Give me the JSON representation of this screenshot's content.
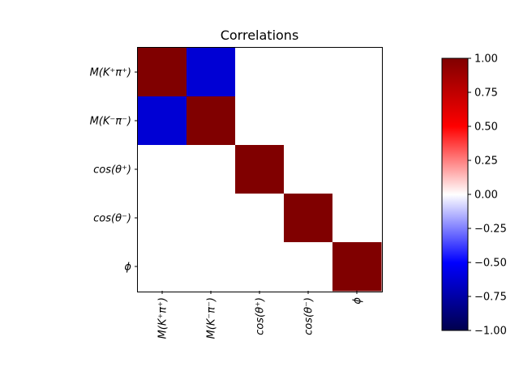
{
  "chart_data": {
    "type": "heatmap",
    "title": "Correlations",
    "labels": [
      "M(K⁺π⁺)",
      "M(K⁻π⁻)",
      "cos(θ⁺)",
      "cos(θ⁻)",
      "ϕ"
    ],
    "matrix": [
      [
        1.0,
        -0.62,
        0.0,
        0.0,
        0.0
      ],
      [
        -0.62,
        1.0,
        0.0,
        0.0,
        0.0
      ],
      [
        0.0,
        0.0,
        1.0,
        0.0,
        0.0
      ],
      [
        0.0,
        0.0,
        0.0,
        1.0,
        0.0
      ],
      [
        0.0,
        0.0,
        0.0,
        0.0,
        1.0
      ]
    ],
    "colormap": "seismic",
    "vmin": -1.0,
    "vmax": 1.0,
    "colorbar_ticks": [
      "1.00",
      "0.75",
      "0.50",
      "0.25",
      "0.00",
      "−0.25",
      "−0.50",
      "−0.75",
      "−1.00"
    ],
    "colorbar_tick_values": [
      1.0,
      0.75,
      0.5,
      0.25,
      0.0,
      -0.25,
      -0.5,
      -0.75,
      -1.0
    ],
    "colors": {
      "low": "#00004d",
      "mid": "#ffffff",
      "high": "#800000"
    }
  }
}
